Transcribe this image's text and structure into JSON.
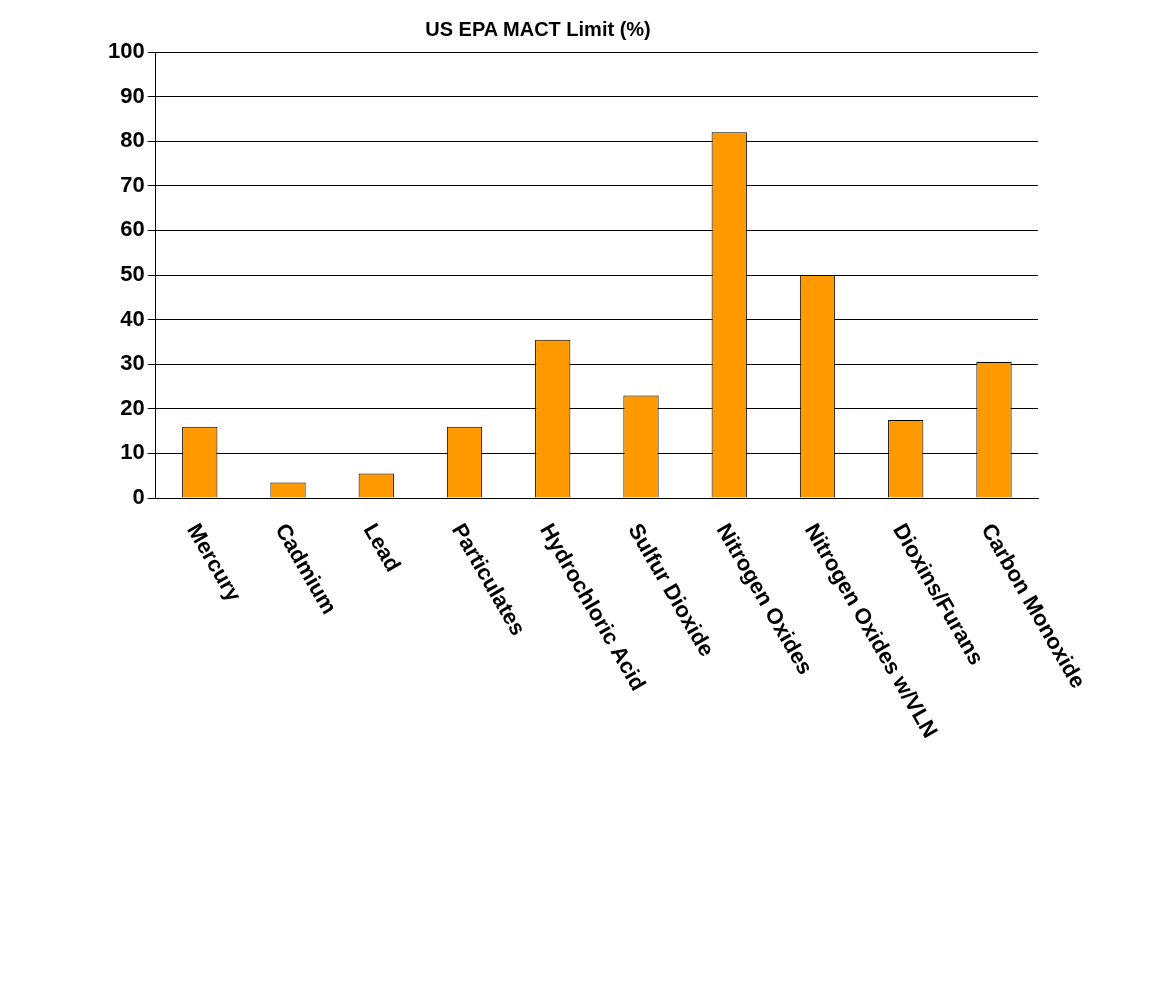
{
  "chart_data": {
    "type": "bar",
    "title": "US EPA MACT Limit (%)",
    "categories": [
      "Mercury",
      "Cadmium",
      "Lead",
      "Particulates",
      "Hydrochloric Acid",
      "Sulfur Dioxide",
      "Nitrogen Oxides",
      "Nitrogen Oxides w/VLN",
      "Dioxins/Furans",
      "Carbon Monoxide"
    ],
    "values": [
      16,
      3.5,
      5.5,
      16,
      35.5,
      23,
      82,
      50,
      17.5,
      30.5
    ],
    "color": "#ff9900",
    "ylim": [
      0,
      100
    ],
    "yticks": [
      0,
      10,
      20,
      30,
      40,
      50,
      60,
      70,
      80,
      90,
      100
    ],
    "grid": "y",
    "legend": false
  }
}
